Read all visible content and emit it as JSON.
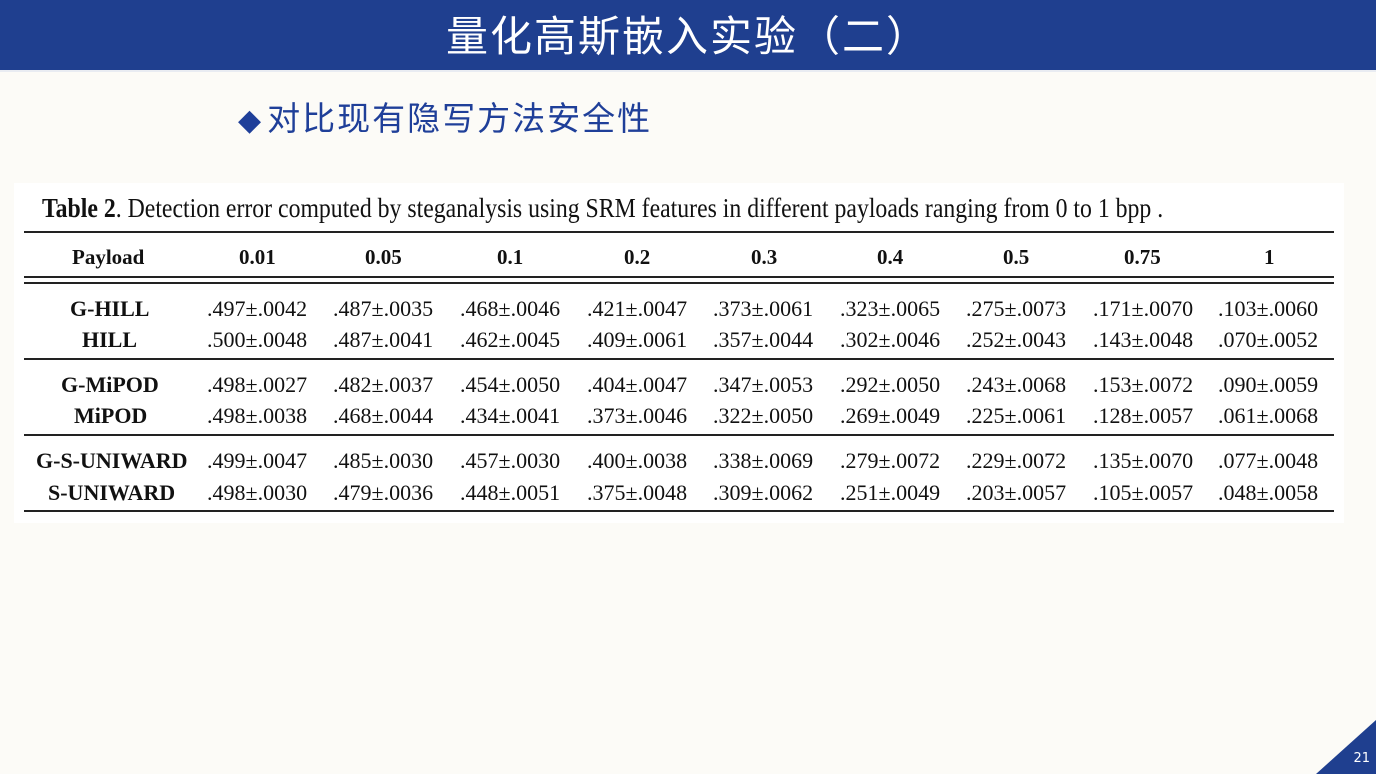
{
  "slide": {
    "title": "量化高斯嵌入实验（二）",
    "subtitle_bullet": "◆",
    "subtitle": "对比现有隐写方法安全性",
    "page_number": "21"
  },
  "table": {
    "caption_label": "Table 2",
    "caption_text": ". Detection error computed by steganalysis using SRM features in different payloads ranging from 0 to 1 bpp .",
    "columns": [
      "Payload",
      "0.01",
      "0.05",
      "0.1",
      "0.2",
      "0.3",
      "0.4",
      "0.5",
      "0.75",
      "1"
    ],
    "rows": [
      {
        "method": "G-HILL",
        "values": [
          ".497±.0042",
          ".487±.0035",
          ".468±.0046",
          ".421±.0047",
          ".373±.0061",
          ".323±.0065",
          ".275±.0073",
          ".171±.0070",
          ".103±.0060"
        ]
      },
      {
        "method": "HILL",
        "values": [
          ".500±.0048",
          ".487±.0041",
          ".462±.0045",
          ".409±.0061",
          ".357±.0044",
          ".302±.0046",
          ".252±.0043",
          ".143±.0048",
          ".070±.0052"
        ]
      },
      {
        "method": "G-MiPOD",
        "values": [
          ".498±.0027",
          ".482±.0037",
          ".454±.0050",
          ".404±.0047",
          ".347±.0053",
          ".292±.0050",
          ".243±.0068",
          ".153±.0072",
          ".090±.0059"
        ]
      },
      {
        "method": "MiPOD",
        "values": [
          ".498±.0038",
          ".468±.0044",
          ".434±.0041",
          ".373±.0046",
          ".322±.0050",
          ".269±.0049",
          ".225±.0061",
          ".128±.0057",
          ".061±.0068"
        ]
      },
      {
        "method": "G-S-UNIWARD",
        "values": [
          ".499±.0047",
          ".485±.0030",
          ".457±.0030",
          ".400±.0038",
          ".338±.0069",
          ".279±.0072",
          ".229±.0072",
          ".135±.0070",
          ".077±.0048"
        ]
      },
      {
        "method": "S-UNIWARD",
        "values": [
          ".498±.0030",
          ".479±.0036",
          ".448±.0051",
          ".375±.0048",
          ".309±.0062",
          ".251±.0049",
          ".203±.0057",
          ".105±.0057",
          ".048±.0058"
        ]
      }
    ]
  },
  "colors": {
    "title_bar": "#1f3f8f",
    "subtitle": "#1f3f99",
    "background": "#fcfbf7"
  }
}
